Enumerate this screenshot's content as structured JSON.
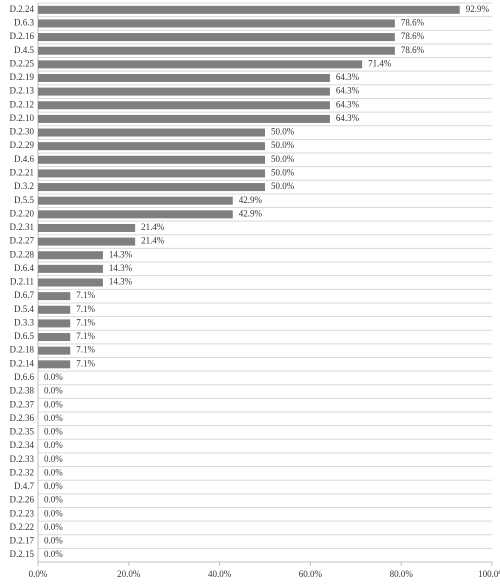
{
  "chart_data": {
    "type": "bar",
    "orientation": "horizontal",
    "categories": [
      "D.2.24",
      "D.6.3",
      "D.2.16",
      "D.4.5",
      "D.2.25",
      "D.2.19",
      "D.2.13",
      "D.2.12",
      "D.2.10",
      "D.2.30",
      "D.2.29",
      "D.4.6",
      "D.2.21",
      "D.3.2",
      "D.5.5",
      "D.2.20",
      "D.2.31",
      "D.2.27",
      "D.2.28",
      "D.6.4",
      "D.2.11",
      "D.6.7",
      "D.5.4",
      "D.3.3",
      "D.6.5",
      "D.2.18",
      "D.2.14",
      "D.6.6",
      "D.2.38",
      "D.2.37",
      "D.2.36",
      "D.2.35",
      "D.2.34",
      "D.2.33",
      "D.2.32",
      "D.4.7",
      "D.2.26",
      "D.2.23",
      "D.2.22",
      "D.2.17",
      "D.2.15"
    ],
    "values": [
      92.9,
      78.6,
      78.6,
      78.6,
      71.4,
      64.3,
      64.3,
      64.3,
      64.3,
      50.0,
      50.0,
      50.0,
      50.0,
      50.0,
      42.9,
      42.9,
      21.4,
      21.4,
      14.3,
      14.3,
      14.3,
      7.1,
      7.1,
      7.1,
      7.1,
      7.1,
      7.1,
      0,
      0,
      0,
      0,
      0,
      0,
      0,
      0,
      0,
      0,
      0,
      0,
      0,
      0
    ],
    "value_labels": [
      "92.9%",
      "78.6%",
      "78.6%",
      "78.6%",
      "71.4%",
      "64.3%",
      "64.3%",
      "64.3%",
      "64.3%",
      "50.0%",
      "50.0%",
      "50.0%",
      "50.0%",
      "50.0%",
      "42.9%",
      "42.9%",
      "21.4%",
      "21.4%",
      "14.3%",
      "14.3%",
      "14.3%",
      "7.1%",
      "7.1%",
      "7.1%",
      "7.1%",
      "7.1%",
      "7.1%",
      "0.0%",
      "0.0%",
      "0.0%",
      "0.0%",
      "0.0%",
      "0.0%",
      "0.0%",
      "0.0%",
      "0.0%",
      "0.0%",
      "0.0%",
      "0.0%",
      "0.0%",
      "0.0%"
    ],
    "color": "#7f7f7f",
    "xlim": [
      0,
      100
    ],
    "xticks": [
      {
        "value": 0,
        "label": "0.0%"
      },
      {
        "value": 20,
        "label": "20.0%"
      },
      {
        "value": 40,
        "label": "40.0%"
      },
      {
        "value": 60,
        "label": "60.0%"
      },
      {
        "value": 80,
        "label": "80.0%"
      },
      {
        "value": 100,
        "label": "100.0%"
      }
    ]
  }
}
